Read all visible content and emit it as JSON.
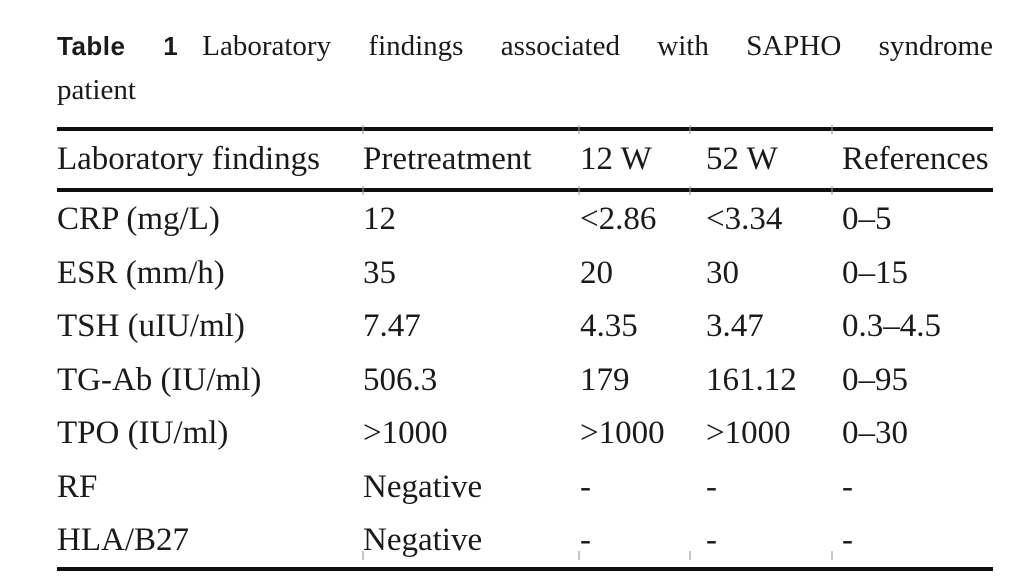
{
  "page": {
    "background": "#ffffff",
    "text_color": "#1a1a1a",
    "rule_color": "#0f0f0f"
  },
  "caption": {
    "label": "Table 1",
    "line1": "Laboratory findings associated with SAPHO syndrome",
    "line2": "patient"
  },
  "table": {
    "columns": [
      "Laboratory findings",
      "Pretreatment",
      "12 W",
      "52 W",
      "References"
    ],
    "rows": [
      [
        "CRP (mg/L)",
        "12",
        "<2.86",
        "<3.34",
        "0–5"
      ],
      [
        "ESR (mm/h)",
        "35",
        "20",
        "30",
        "0–15"
      ],
      [
        "TSH (uIU/ml)",
        "7.47",
        "4.35",
        "3.47",
        "0.3–4.5"
      ],
      [
        "TG-Ab (IU/ml)",
        "506.3",
        "179",
        "161.12",
        "0–95"
      ],
      [
        "TPO (IU/ml)",
        ">1000",
        ">1000",
        ">1000",
        "0–30"
      ],
      [
        "RF",
        "Negative",
        "-",
        "-",
        "-"
      ],
      [
        "HLA/B27",
        "Negative",
        "-",
        "-",
        "-"
      ]
    ]
  }
}
